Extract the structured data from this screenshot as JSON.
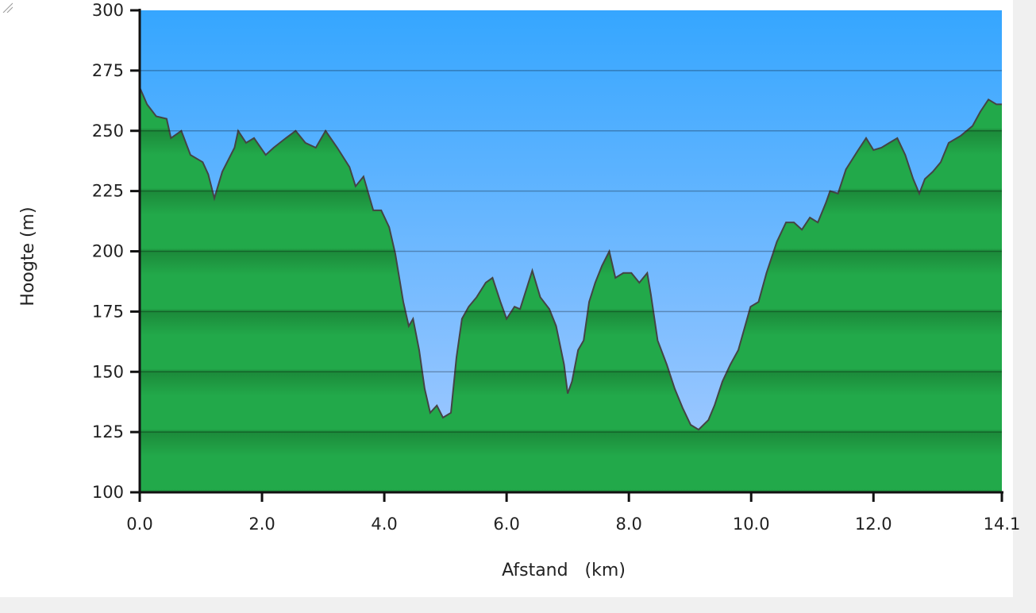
{
  "chart_data": {
    "type": "area",
    "title": "",
    "xlabel": "Afstand   (km)",
    "ylabel": "Hoogte (m)",
    "xlim": [
      0,
      14.1
    ],
    "ylim": [
      100,
      300
    ],
    "x_ticks": [
      "0.0",
      "2.0",
      "4.0",
      "6.0",
      "8.0",
      "10.0",
      "12.0",
      "14.1"
    ],
    "y_ticks": [
      "100",
      "125",
      "150",
      "175",
      "200",
      "225",
      "250",
      "275",
      "300"
    ],
    "grid": true,
    "colors": {
      "sky_top": "#35a6ff",
      "sky_bottom": "#a8cbff",
      "terrain": "#22a94a",
      "terrain_dark": "#1c8a3a",
      "line": "#444444"
    },
    "series": [
      {
        "x": [
          0,
          0.12,
          0.27,
          0.44,
          0.51,
          0.68,
          0.83,
          1.03,
          1.12,
          1.22,
          1.35,
          1.55,
          1.61,
          1.74,
          1.87,
          2.06,
          2.19,
          2.39,
          2.55,
          2.71,
          2.88,
          3.04,
          3.23,
          3.43,
          3.53,
          3.66,
          3.82,
          3.95,
          4.08,
          4.18,
          4.31,
          4.4,
          4.47,
          4.57,
          4.66,
          4.75,
          4.86,
          4.96,
          5.09,
          5.18,
          5.27,
          5.38,
          5.51,
          5.66,
          5.77,
          5.9,
          6.0,
          6.13,
          6.22,
          6.32,
          6.42,
          6.55,
          6.7,
          6.81,
          6.94,
          7.0,
          7.07,
          7.17,
          7.26,
          7.35,
          7.45,
          7.56,
          7.68,
          7.78,
          7.91,
          8.04,
          8.17,
          8.3,
          8.36,
          8.47,
          8.62,
          8.75,
          8.88,
          9.01,
          9.14,
          9.3,
          9.4,
          9.53,
          9.66,
          9.79,
          9.99,
          10.12,
          10.25,
          10.42,
          10.57,
          10.7,
          10.83,
          10.96,
          11.09,
          11.22,
          11.29,
          11.42,
          11.55,
          11.75,
          11.88,
          12.0,
          12.13,
          12.26,
          12.39,
          12.52,
          12.65,
          12.75,
          12.84,
          12.97,
          13.1,
          13.23,
          13.43,
          13.62,
          13.75,
          13.88,
          14.01,
          14.1
        ],
        "y": [
          268,
          261,
          256,
          255,
          247,
          250,
          240,
          237,
          232,
          222,
          233,
          243,
          250,
          245,
          247,
          240,
          243,
          247,
          250,
          245,
          243,
          250,
          243,
          235,
          227,
          231,
          217,
          217,
          210,
          199,
          179,
          169,
          172,
          159,
          143,
          133,
          136,
          131,
          133,
          156,
          172,
          177,
          181,
          187,
          189,
          179,
          172,
          177,
          176,
          184,
          192,
          181,
          176,
          169,
          153,
          141,
          146,
          159,
          163,
          179,
          187,
          194,
          200,
          189,
          191,
          191,
          187,
          191,
          182,
          163,
          153,
          143,
          135,
          128,
          126,
          130,
          136,
          146,
          153,
          159,
          177,
          179,
          191,
          204,
          212,
          212,
          209,
          214,
          212,
          220,
          225,
          224,
          234,
          242,
          247,
          242,
          243,
          245,
          247,
          240,
          230,
          224,
          230,
          233,
          237,
          245,
          248,
          252,
          258,
          263,
          261,
          261
        ]
      }
    ]
  }
}
